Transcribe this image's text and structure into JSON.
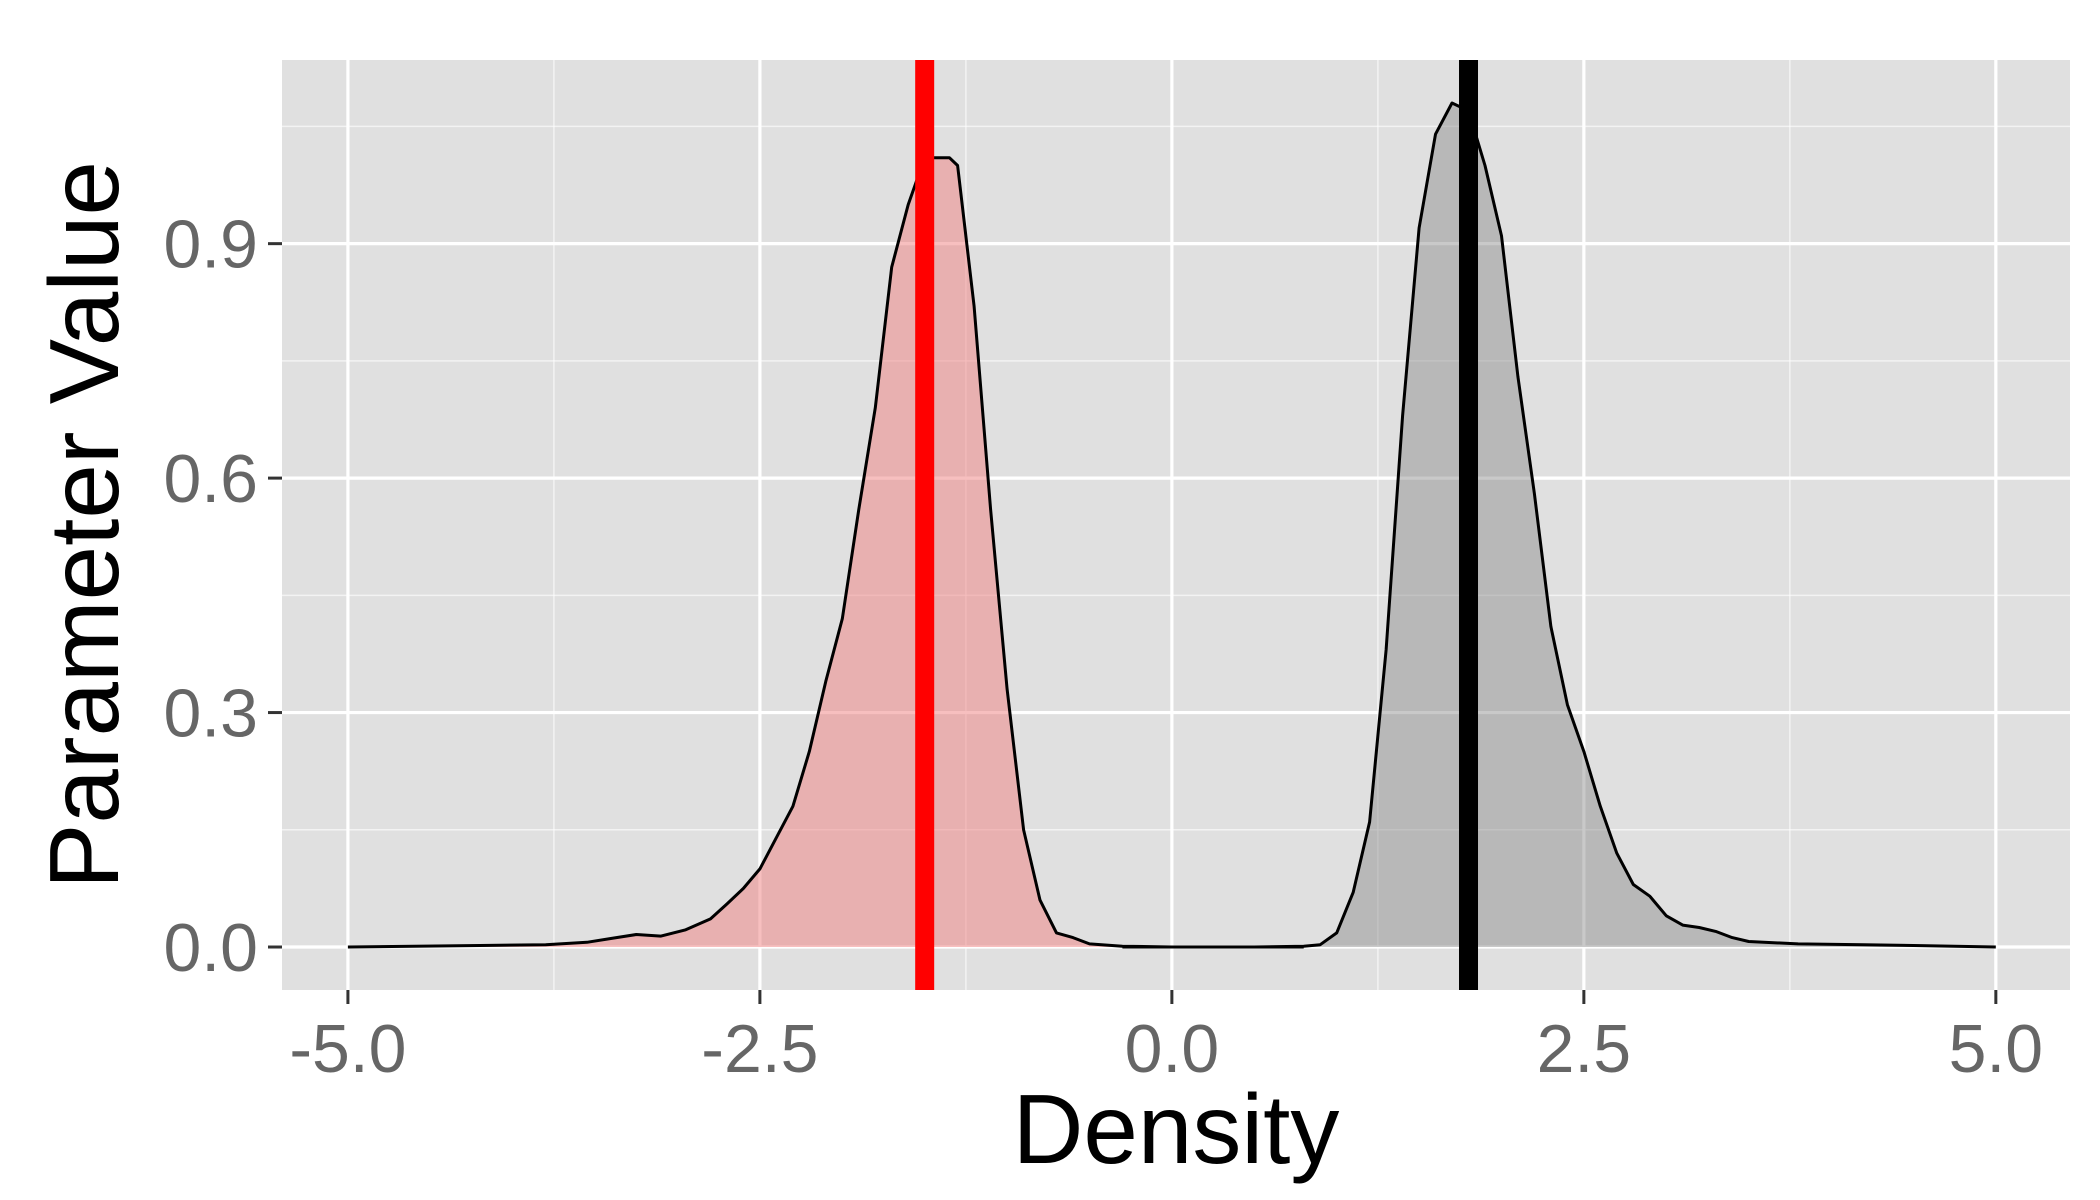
{
  "chart_data": {
    "type": "area",
    "title": "",
    "xlabel": "Density",
    "ylabel": "Parameter Value",
    "xlim": [
      -5.4,
      5.45
    ],
    "ylim": [
      -0.055,
      1.135
    ],
    "x_ticks": [
      -5.0,
      -2.5,
      0.0,
      2.5,
      5.0
    ],
    "x_tick_labels": [
      "-5.0",
      "-2.5",
      "0.0",
      "2.5",
      "5.0"
    ],
    "x_minor_ticks": [
      -3.75,
      -1.25,
      1.25,
      3.75
    ],
    "y_ticks": [
      0.0,
      0.3,
      0.6,
      0.9
    ],
    "y_tick_labels": [
      "0.0",
      "0.3",
      "0.6",
      "0.9"
    ],
    "y_minor_ticks": [
      0.15,
      0.45,
      0.75,
      1.05
    ],
    "grid": true,
    "background_color": "#e0e0e0",
    "grid_color": "#ffffff",
    "series": [
      {
        "fill_color": "#f08080",
        "fill_opacity": 0.5,
        "line_color": "#000000",
        "reference_line": {
          "x": -1.5,
          "color": "#ff0000"
        },
        "points": [
          [
            -5.0,
            0.0
          ],
          [
            -4.2,
            0.002
          ],
          [
            -3.8,
            0.003
          ],
          [
            -3.55,
            0.006
          ],
          [
            -3.4,
            0.011
          ],
          [
            -3.25,
            0.016
          ],
          [
            -3.1,
            0.014
          ],
          [
            -2.95,
            0.022
          ],
          [
            -2.8,
            0.036
          ],
          [
            -2.7,
            0.055
          ],
          [
            -2.6,
            0.075
          ],
          [
            -2.5,
            0.1
          ],
          [
            -2.4,
            0.14
          ],
          [
            -2.3,
            0.18
          ],
          [
            -2.2,
            0.25
          ],
          [
            -2.1,
            0.34
          ],
          [
            -2.0,
            0.42
          ],
          [
            -1.9,
            0.56
          ],
          [
            -1.8,
            0.69
          ],
          [
            -1.7,
            0.87
          ],
          [
            -1.6,
            0.95
          ],
          [
            -1.5,
            1.01
          ],
          [
            -1.45,
            1.01
          ],
          [
            -1.35,
            1.01
          ],
          [
            -1.3,
            1.0
          ],
          [
            -1.2,
            0.82
          ],
          [
            -1.1,
            0.56
          ],
          [
            -1.0,
            0.33
          ],
          [
            -0.9,
            0.15
          ],
          [
            -0.8,
            0.06
          ],
          [
            -0.7,
            0.018
          ],
          [
            -0.6,
            0.012
          ],
          [
            -0.5,
            0.004
          ],
          [
            -0.3,
            0.001
          ],
          [
            0.0,
            0.0
          ],
          [
            0.5,
            0.0
          ],
          [
            0.8,
            0.0
          ]
        ]
      },
      {
        "fill_color": "#888888",
        "fill_opacity": 0.45,
        "line_color": "#000000",
        "reference_line": {
          "x": 1.8,
          "color": "#000000"
        },
        "points": [
          [
            -0.3,
            0.0
          ],
          [
            0.5,
            0.0
          ],
          [
            0.8,
            0.001
          ],
          [
            0.9,
            0.003
          ],
          [
            1.0,
            0.018
          ],
          [
            1.1,
            0.07
          ],
          [
            1.2,
            0.16
          ],
          [
            1.3,
            0.38
          ],
          [
            1.4,
            0.68
          ],
          [
            1.5,
            0.92
          ],
          [
            1.6,
            1.04
          ],
          [
            1.7,
            1.08
          ],
          [
            1.8,
            1.07
          ],
          [
            1.9,
            1.0
          ],
          [
            2.0,
            0.91
          ],
          [
            2.1,
            0.73
          ],
          [
            2.2,
            0.58
          ],
          [
            2.3,
            0.41
          ],
          [
            2.4,
            0.31
          ],
          [
            2.5,
            0.25
          ],
          [
            2.6,
            0.18
          ],
          [
            2.7,
            0.12
          ],
          [
            2.8,
            0.08
          ],
          [
            2.9,
            0.065
          ],
          [
            3.0,
            0.04
          ],
          [
            3.1,
            0.028
          ],
          [
            3.2,
            0.025
          ],
          [
            3.3,
            0.02
          ],
          [
            3.4,
            0.012
          ],
          [
            3.5,
            0.007
          ],
          [
            3.8,
            0.004
          ],
          [
            4.2,
            0.003
          ],
          [
            4.5,
            0.002
          ],
          [
            5.0,
            0.0
          ]
        ]
      }
    ]
  }
}
